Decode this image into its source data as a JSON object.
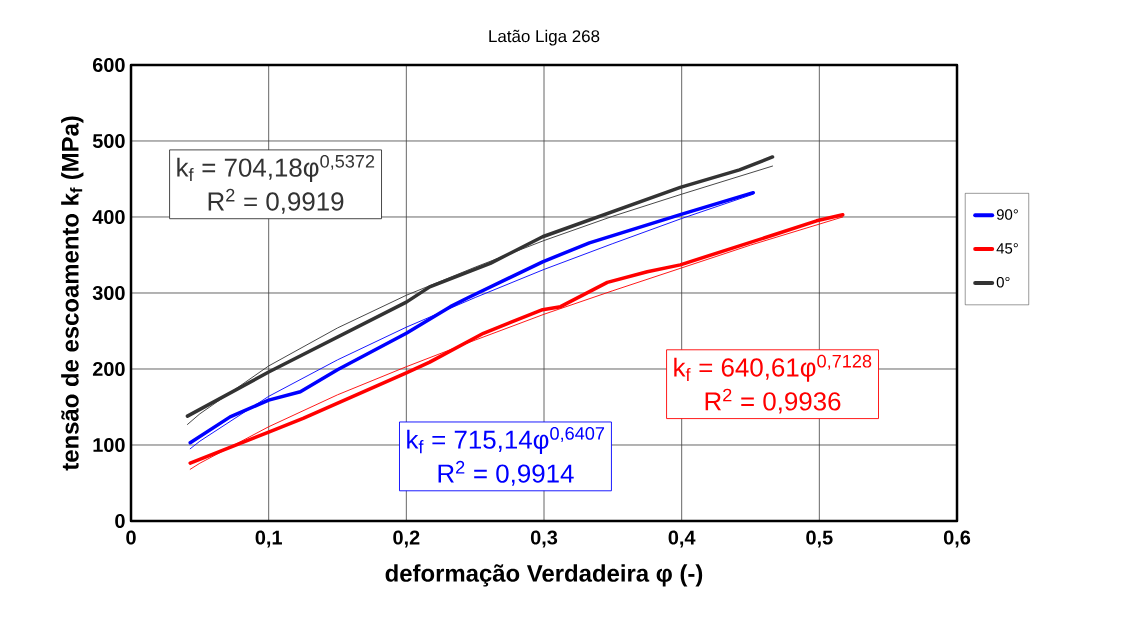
{
  "chart_data": {
    "type": "line",
    "title": "Latão Liga 268",
    "xlabel": "deformação Verdadeira φ (-)",
    "ylabel": "tensão de escoamento k$_{f}$ (MPa)",
    "xlim": [
      0,
      0.6
    ],
    "ylim": [
      0,
      600
    ],
    "xticks": [
      0,
      {
        "value": 0.1,
        "label": "0,1"
      },
      {
        "value": 0.2,
        "label": "0,2"
      },
      {
        "value": 0.3,
        "label": "0,3"
      },
      {
        "value": 0.4,
        "label": "0,4"
      },
      {
        "value": 0.5,
        "label": "0,5"
      },
      {
        "value": 0.6,
        "label": "0,6"
      }
    ],
    "yticks": [
      0,
      100,
      200,
      300,
      400,
      500,
      600
    ],
    "grid": true,
    "legend": "right",
    "series": [
      {
        "name": "90°",
        "color": "#0000ff",
        "x": [
          0.043,
          0.072,
          0.1,
          0.123,
          0.15,
          0.2,
          0.232,
          0.244,
          0.299,
          0.333,
          0.399,
          0.452
        ],
        "values": [
          103,
          137,
          159,
          170,
          199,
          247,
          282,
          293,
          341,
          366,
          403,
          432
        ]
      },
      {
        "name": "45°",
        "color": "#ff0000",
        "x": [
          0.043,
          0.1,
          0.125,
          0.2,
          0.217,
          0.256,
          0.299,
          0.312,
          0.346,
          0.375,
          0.399,
          0.466,
          0.498,
          0.517
        ],
        "values": [
          76,
          117,
          135,
          195,
          209,
          247,
          278,
          282,
          314,
          328,
          337,
          376,
          395,
          403
        ]
      },
      {
        "name": "0°",
        "color": "#333333",
        "x": [
          0.041,
          0.1,
          0.2,
          0.217,
          0.261,
          0.299,
          0.399,
          0.442,
          0.466
        ],
        "values": [
          138,
          196,
          288,
          308,
          339,
          374,
          439,
          462,
          479
        ]
      },
      {
        "color": "#0000ff",
        "x": [
          0.043,
          0.05,
          0.1,
          0.15,
          0.2,
          0.25,
          0.3,
          0.35,
          0.4,
          0.452
        ],
        "values": [
          95,
          105,
          164,
          212,
          255,
          294,
          331,
          365,
          398,
          430
        ]
      },
      {
        "color": "#ff0000",
        "x": [
          0.043,
          0.05,
          0.1,
          0.15,
          0.2,
          0.25,
          0.3,
          0.35,
          0.4,
          0.45,
          0.517
        ],
        "values": [
          68,
          76,
          124,
          166,
          203,
          238,
          272,
          303,
          333,
          363,
          400
        ]
      },
      {
        "color": "#333333",
        "x": [
          0.041,
          0.05,
          0.1,
          0.15,
          0.2,
          0.25,
          0.3,
          0.35,
          0.4,
          0.466
        ],
        "values": [
          127,
          141,
          204,
          254,
          297,
          334,
          369,
          401,
          430,
          467
        ]
      }
    ],
    "annotations": [
      "k$_{f}$ = 704,18φ$^{0,5372}$",
      "R$^{2}$ = 0,9919",
      "k$_{f}$ = 715,14φ$^{0,6407}$",
      "R$^{2}$ = 0,9914",
      "k$_{f}$ = 640,61φ$^{0,7128}$",
      "R$^{2}$ = 0,9936"
    ]
  }
}
